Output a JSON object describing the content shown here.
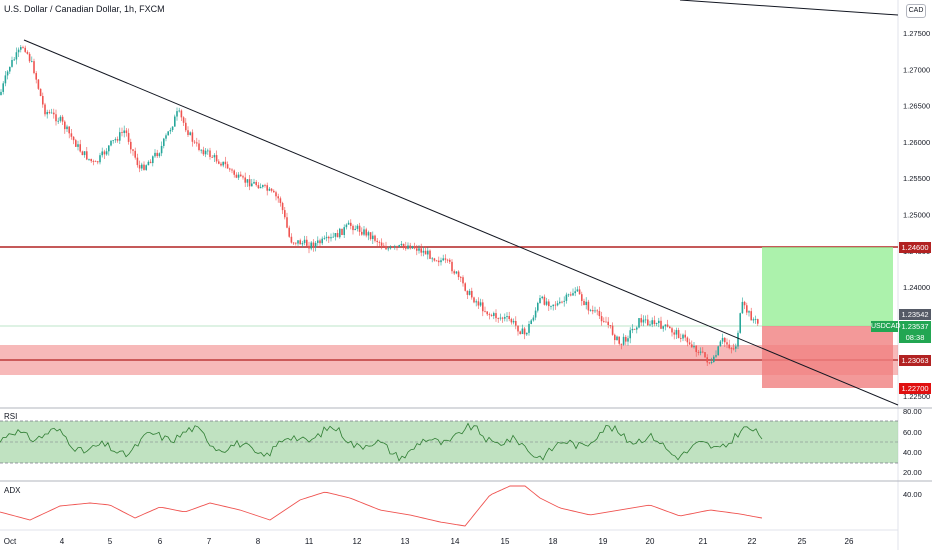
{
  "header": {
    "title": "U.S. Dollar / Canadian Dollar, 1h, FXCM",
    "currency_badge": "CAD"
  },
  "price_axis": {
    "ticks": [
      "1.27500",
      "1.27000",
      "1.26500",
      "1.26000",
      "1.25500",
      "1.25000",
      "1.24500",
      "1.24000",
      "1.23500",
      "1.23000",
      "1.22500"
    ]
  },
  "price_labels": {
    "resistance": "1.24600",
    "last_close": "1.23542",
    "current": "1.23537",
    "countdown": "08:38",
    "support": "1.23063",
    "stop": "1.22700",
    "symbol": "USDCAD"
  },
  "time_axis": {
    "labels": [
      "Oct",
      "4",
      "5",
      "6",
      "7",
      "8",
      "11",
      "12",
      "13",
      "14",
      "15",
      "18",
      "19",
      "20",
      "21",
      "22",
      "25",
      "26"
    ]
  },
  "rsi": {
    "label": "RSI",
    "ticks": [
      "80.00",
      "60.00",
      "40.00",
      "20.00"
    ]
  },
  "adx": {
    "label": "ADX",
    "ticks": [
      "40.00"
    ]
  },
  "colors": {
    "up": "#26a69a",
    "down": "#ef5350",
    "level_red": "#b22222",
    "zone_red": "#f08080",
    "zone_green": "#90ee90"
  }
}
